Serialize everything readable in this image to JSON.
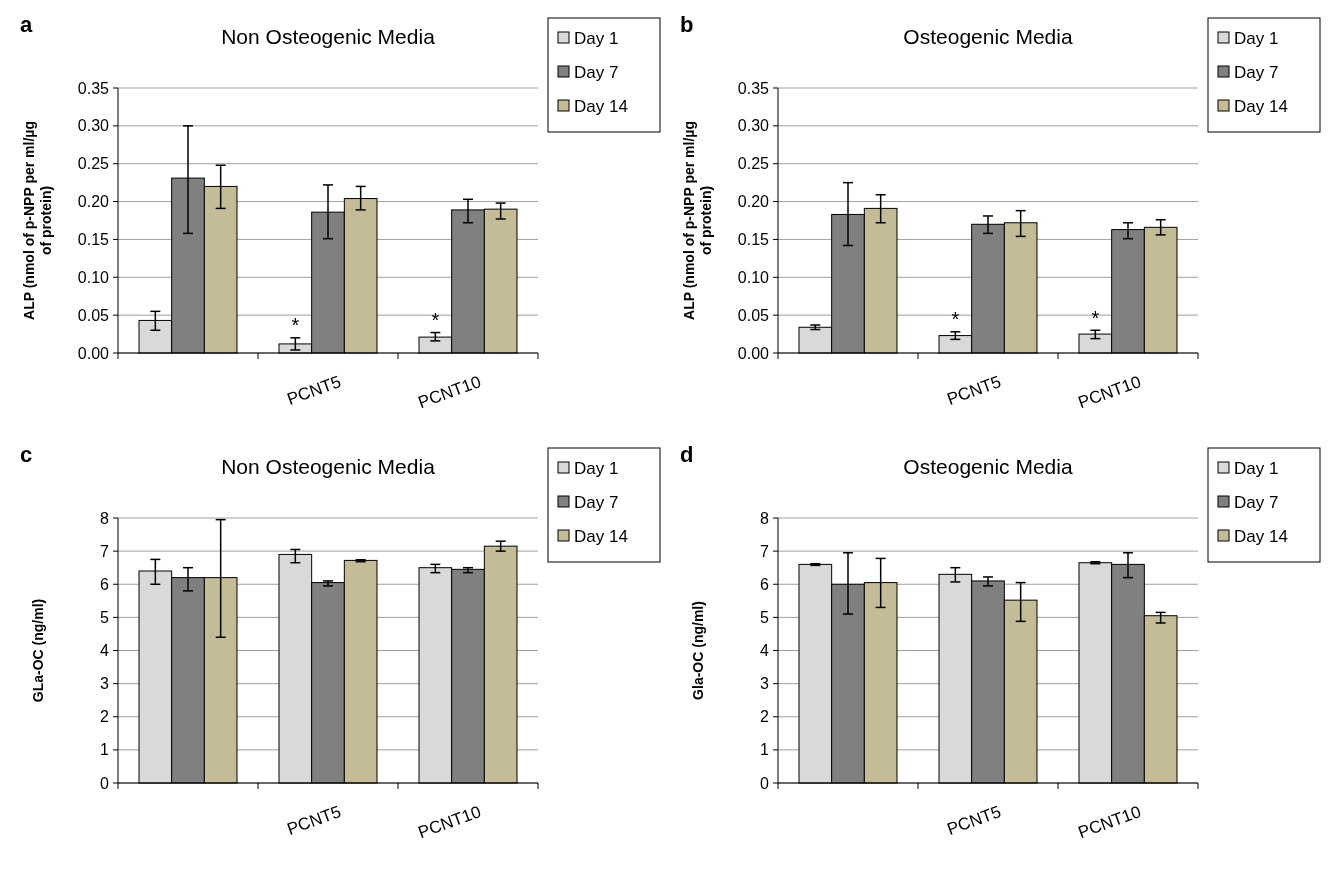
{
  "chart_data": [
    {
      "type": "bar",
      "title": "Non Osteogenic Media",
      "ylabel": "ALP (nmol of p-NPP per ml/µg of protein)",
      "categories": [
        null,
        "PCNT5",
        "PCNT10"
      ],
      "series": [
        {
          "name": "Day 1",
          "color": "#d9d9d9",
          "values": [
            0.043,
            0.012,
            0.021
          ],
          "errors": [
            [
              0.03,
              0.055
            ],
            [
              0.004,
              0.02
            ],
            [
              0.016,
              0.027
            ]
          ]
        },
        {
          "name": "Day 7",
          "color": "#808080",
          "values": [
            0.231,
            0.186,
            0.189
          ],
          "errors": [
            [
              0.158,
              0.3
            ],
            [
              0.151,
              0.222
            ],
            [
              0.172,
              0.203
            ]
          ]
        },
        {
          "name": "Day 14",
          "color": "#c4bc96",
          "values": [
            0.22,
            0.204,
            0.19
          ],
          "errors": [
            [
              0.191,
              0.248
            ],
            [
              0.189,
              0.22
            ],
            [
              0.177,
              0.198
            ]
          ]
        }
      ],
      "ylim": [
        0,
        0.35
      ],
      "yticks": [
        {
          "value": 0,
          "label": "0.00"
        },
        {
          "value": 0.05,
          "label": "0.05"
        },
        {
          "value": 0.1,
          "label": "0.10"
        },
        {
          "value": 0.15,
          "label": "0.15"
        },
        {
          "value": 0.2,
          "label": "0.20"
        },
        {
          "value": 0.25,
          "label": "0.25"
        },
        {
          "value": 0.3,
          "label": "0.30"
        },
        {
          "value": 0.35,
          "label": "0.35"
        }
      ],
      "grid": "y",
      "legend": "top right",
      "annotations": [
        "a",
        {
          "text": "*",
          "x": "PCNT5",
          "y": 0.022
        },
        {
          "text": "*",
          "x": "PCNT10",
          "y": 0.029
        }
      ]
    },
    {
      "type": "bar",
      "title": "Osteogenic Media",
      "ylabel": "ALP (nmol of p-NPP per ml/µg of protein)",
      "categories": [
        null,
        "PCNT5",
        "PCNT10"
      ],
      "series": [
        {
          "name": "Day 1",
          "color": "#d9d9d9",
          "values": [
            0.034,
            0.023,
            0.025
          ],
          "errors": [
            [
              0.031,
              0.037
            ],
            [
              0.018,
              0.028
            ],
            [
              0.019,
              0.03
            ]
          ]
        },
        {
          "name": "Day 7",
          "color": "#808080",
          "values": [
            0.183,
            0.17,
            0.163
          ],
          "errors": [
            [
              0.142,
              0.225
            ],
            [
              0.158,
              0.181
            ],
            [
              0.151,
              0.172
            ]
          ]
        },
        {
          "name": "Day 14",
          "color": "#c4bc96",
          "values": [
            0.191,
            0.172,
            0.166
          ],
          "errors": [
            [
              0.172,
              0.209
            ],
            [
              0.154,
              0.188
            ],
            [
              0.156,
              0.176
            ]
          ]
        }
      ],
      "ylim": [
        0,
        0.35
      ],
      "yticks": [
        {
          "value": 0,
          "label": "0.00"
        },
        {
          "value": 0.05,
          "label": "0.05"
        },
        {
          "value": 0.1,
          "label": "0.10"
        },
        {
          "value": 0.15,
          "label": "0.15"
        },
        {
          "value": 0.2,
          "label": "0.20"
        },
        {
          "value": 0.25,
          "label": "0.25"
        },
        {
          "value": 0.3,
          "label": "0.30"
        },
        {
          "value": 0.35,
          "label": "0.35"
        }
      ],
      "grid": "y",
      "legend": "top right",
      "annotations": [
        "b",
        {
          "text": "*",
          "x": "PCNT5",
          "y": 0.03
        },
        {
          "text": "*",
          "x": "PCNT10",
          "y": 0.032
        }
      ]
    },
    {
      "type": "bar",
      "title": "Non Osteogenic Media",
      "ylabel": "GLa-OC (ng/ml)",
      "categories": [
        null,
        "PCNT5",
        "PCNT10"
      ],
      "series": [
        {
          "name": "Day 1",
          "color": "#d9d9d9",
          "values": [
            6.4,
            6.9,
            6.5
          ],
          "errors": [
            [
              6.0,
              6.75
            ],
            [
              6.65,
              7.05
            ],
            [
              6.35,
              6.6
            ]
          ]
        },
        {
          "name": "Day 7",
          "color": "#808080",
          "values": [
            6.2,
            6.05,
            6.45
          ],
          "errors": [
            [
              5.8,
              6.5
            ],
            [
              5.95,
              6.1
            ],
            [
              6.35,
              6.5
            ]
          ]
        },
        {
          "name": "Day 14",
          "color": "#c4bc96",
          "values": [
            6.2,
            6.72,
            7.15
          ],
          "errors": [
            [
              4.4,
              7.95
            ],
            [
              6.68,
              6.74
            ],
            [
              7.0,
              7.3
            ]
          ]
        }
      ],
      "ylim": [
        0,
        8
      ],
      "yticks": [
        0,
        1,
        2,
        3,
        4,
        5,
        6,
        7,
        8
      ],
      "grid": "y",
      "legend": "top right",
      "annotations": [
        "c"
      ]
    },
    {
      "type": "bar",
      "title": "Osteogenic Media",
      "ylabel": "Gla-OC (ng/ml)",
      "categories": [
        null,
        "PCNT5",
        "PCNT10"
      ],
      "series": [
        {
          "name": "Day 1",
          "color": "#d9d9d9",
          "values": [
            6.6,
            6.3,
            6.65
          ],
          "errors": [
            [
              6.57,
              6.62
            ],
            [
              6.07,
              6.5
            ],
            [
              6.62,
              6.68
            ]
          ]
        },
        {
          "name": "Day 7",
          "color": "#808080",
          "values": [
            6.0,
            6.1,
            6.6
          ],
          "errors": [
            [
              5.1,
              6.95
            ],
            [
              5.95,
              6.22
            ],
            [
              6.2,
              6.95
            ]
          ]
        },
        {
          "name": "Day 14",
          "color": "#c4bc96",
          "values": [
            6.05,
            5.52,
            5.05
          ],
          "errors": [
            [
              5.3,
              6.78
            ],
            [
              4.88,
              6.05
            ],
            [
              4.83,
              5.15
            ]
          ]
        }
      ],
      "ylim": [
        0,
        8
      ],
      "yticks": [
        0,
        1,
        2,
        3,
        4,
        5,
        6,
        7,
        8
      ],
      "grid": "y",
      "legend": "top right",
      "annotations": [
        "d"
      ]
    }
  ]
}
